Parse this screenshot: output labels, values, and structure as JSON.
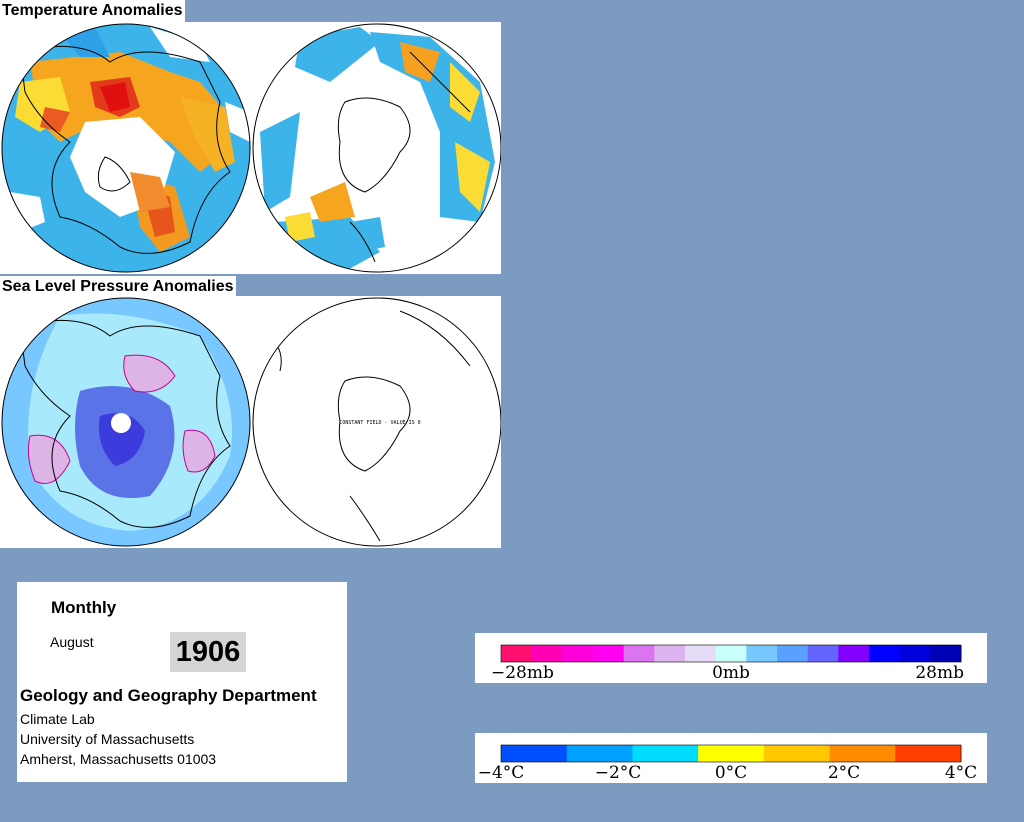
{
  "panels": {
    "temperature": {
      "title": "Temperature Anomalies"
    },
    "pressure": {
      "title": "Sea Level Pressure Anomalies",
      "south_annotation": "CONSTANT FIELD - VALUE IS 0"
    }
  },
  "info": {
    "period": "Monthly",
    "month": "August",
    "year": "1906",
    "department": "Geology and Geography Department",
    "lab": "Climate Lab",
    "university": "University of Massachusetts",
    "address": "Amherst, Massachusetts 01003"
  },
  "pressure_legend": {
    "labels": [
      "−28mb",
      "0mb",
      "28mb"
    ],
    "colors": [
      "#ff0f6e",
      "#ff00b4",
      "#ff00dc",
      "#ff00f0",
      "#dc73f0",
      "#dcb4f0",
      "#e6dcf8",
      "#c8fff8",
      "#78c8ff",
      "#5aa0ff",
      "#6464ff",
      "#8200ff",
      "#0000ff",
      "#0000dc",
      "#0000b4"
    ]
  },
  "temperature_legend": {
    "labels": [
      "−4°C",
      "−2°C",
      "0°C",
      "2°C",
      "4°C"
    ],
    "colors": [
      "#0050ff",
      "#00a0ff",
      "#00dcff",
      "#ffff00",
      "#ffc800",
      "#ff8c00",
      "#ff4000"
    ]
  },
  "colors": {
    "background": "#7b9bc0",
    "warm": "#f5a019",
    "hot": "#e11e1e",
    "cool": "#32b4eb",
    "low_pressure": "#5a73e6",
    "high_pressure": "#dcb4e6"
  }
}
